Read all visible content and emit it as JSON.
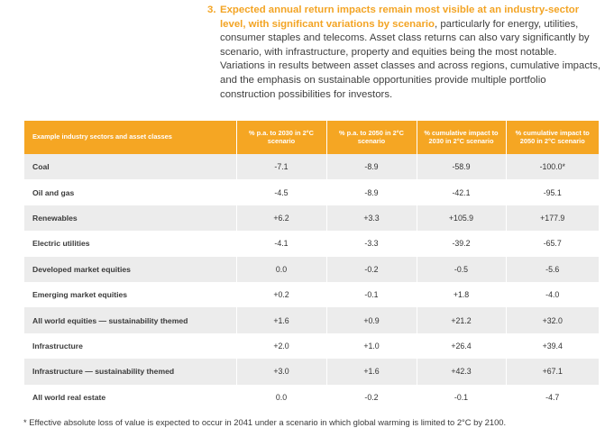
{
  "intro": {
    "number": "3.",
    "highlight": "Expected annual return impacts remain most visible at an industry-sector level, with significant variations by scenario",
    "body": ", particularly for energy, utilities, consumer staples and telecoms. Asset class returns can also vary significantly by scenario, with infrastructure, property and equities being the most notable. Variations in results between asset classes and across regions, cumulative impacts, and the emphasis on sustainable opportunities provide multiple portfolio construction possibilities for investors."
  },
  "table": {
    "headers": [
      "Example industry sectors and asset classes",
      "% p.a. to 2030 in 2°C scenario",
      "% p.a. to 2050 in 2°C scenario",
      "% cumulative impact to 2030 in 2°C scenario",
      "% cumulative impact to 2050 in 2°C scenario"
    ],
    "rows": [
      [
        "Coal",
        "-7.1",
        "-8.9",
        "-58.9",
        "-100.0*"
      ],
      [
        "Oil and gas",
        "-4.5",
        "-8.9",
        "-42.1",
        "-95.1"
      ],
      [
        "Renewables",
        "+6.2",
        "+3.3",
        "+105.9",
        "+177.9"
      ],
      [
        "Electric utilities",
        "-4.1",
        "-3.3",
        "-39.2",
        "-65.7"
      ],
      [
        "Developed market equities",
        "0.0",
        "-0.2",
        "-0.5",
        "-5.6"
      ],
      [
        "Emerging market equities",
        "+0.2",
        "-0.1",
        "+1.8",
        "-4.0"
      ],
      [
        "All world equities — sustainability themed",
        "+1.6",
        "+0.9",
        "+21.2",
        "+32.0"
      ],
      [
        "Infrastructure",
        "+2.0",
        "+1.0",
        "+26.4",
        "+39.4"
      ],
      [
        "Infrastructure — sustainability themed",
        "+3.0",
        "+1.6",
        "+42.3",
        "+67.1"
      ],
      [
        "All world real estate",
        "0.0",
        "-0.2",
        "-0.1",
        "-4.7"
      ]
    ]
  },
  "footnote": "* Effective absolute loss of value is expected to occur in 2041 under a scenario in which global warming is limited to 2°C by 2100.",
  "colors": {
    "accent": "#f5a623",
    "row_alt": "#ececec"
  }
}
